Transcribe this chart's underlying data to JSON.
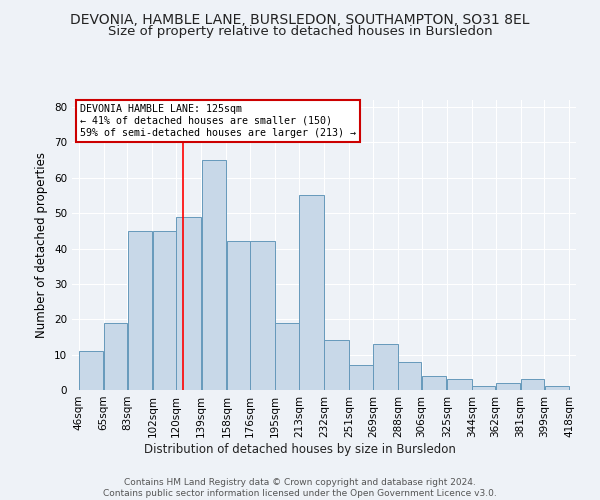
{
  "title": "DEVONIA, HAMBLE LANE, BURSLEDON, SOUTHAMPTON, SO31 8EL",
  "subtitle": "Size of property relative to detached houses in Bursledon",
  "xlabel": "Distribution of detached houses by size in Bursledon",
  "ylabel": "Number of detached properties",
  "heights": [
    11,
    19,
    45,
    45,
    49,
    65,
    42,
    42,
    19,
    55,
    14,
    7,
    13,
    8,
    4,
    3,
    1,
    2,
    3,
    1
  ],
  "bin_edges": [
    46,
    65,
    83,
    102,
    120,
    139,
    158,
    176,
    195,
    213,
    232,
    251,
    269,
    288,
    306,
    325,
    344,
    362,
    381,
    399,
    418
  ],
  "bar_color": "#c8d8e8",
  "bar_edge_color": "#6699bb",
  "red_line_x": 125,
  "annotation_text": "DEVONIA HAMBLE LANE: 125sqm\n← 41% of detached houses are smaller (150)\n59% of semi-detached houses are larger (213) →",
  "annotation_box_color": "white",
  "annotation_box_edge_color": "#cc0000",
  "ylim": [
    0,
    82
  ],
  "yticks": [
    0,
    10,
    20,
    30,
    40,
    50,
    60,
    70,
    80
  ],
  "tick_labels": [
    "46sqm",
    "65sqm",
    "83sqm",
    "102sqm",
    "120sqm",
    "139sqm",
    "158sqm",
    "176sqm",
    "195sqm",
    "213sqm",
    "232sqm",
    "251sqm",
    "269sqm",
    "288sqm",
    "306sqm",
    "325sqm",
    "344sqm",
    "362sqm",
    "381sqm",
    "399sqm",
    "418sqm"
  ],
  "footer_text": "Contains HM Land Registry data © Crown copyright and database right 2024.\nContains public sector information licensed under the Open Government Licence v3.0.",
  "background_color": "#eef2f7",
  "grid_color": "#ffffff",
  "title_fontsize": 10,
  "subtitle_fontsize": 9.5,
  "axis_label_fontsize": 8.5,
  "tick_fontsize": 7.5,
  "footer_fontsize": 6.5
}
